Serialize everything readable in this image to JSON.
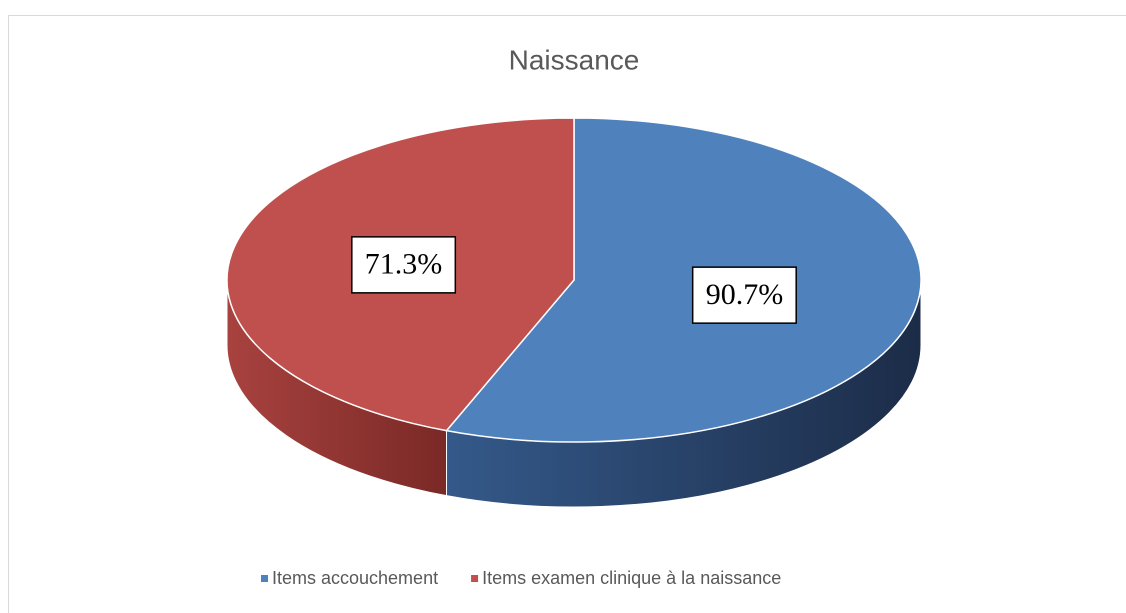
{
  "chart_data": {
    "type": "pie",
    "title": "Naissance",
    "categories": [
      "Items accouchement",
      "Items examen clinique à la naissance"
    ],
    "values": [
      90.7,
      71.3
    ],
    "value_labels": [
      "90.7%",
      "71.3%"
    ],
    "colors": [
      "#4f81bd",
      "#c0504d"
    ],
    "three_d": true,
    "legend": "bottom"
  }
}
